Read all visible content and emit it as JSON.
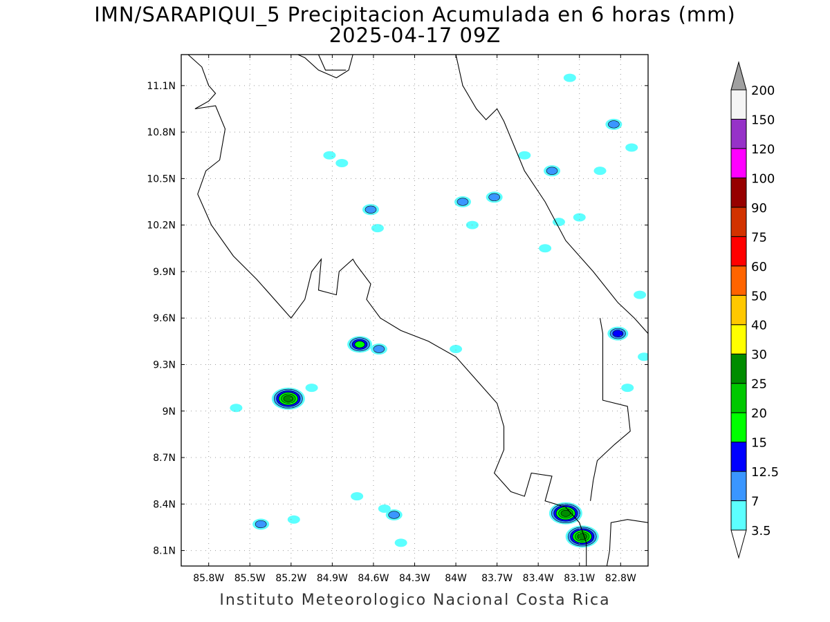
{
  "title": "IMN/SARAPIQUI_5 Precipitacion Acumulada en 6 horas (mm)",
  "subtitle": "2025-04-17 09Z",
  "credit": "Instituto Meteorologico Nacional Costa Rica",
  "map": {
    "lon_range": [
      -86.0,
      -82.6
    ],
    "lat_range": [
      8.0,
      11.3
    ],
    "lat_ticks": [
      {
        "value": 8.1,
        "label": "8.1N"
      },
      {
        "value": 8.4,
        "label": "8.4N"
      },
      {
        "value": 8.7,
        "label": "8.7N"
      },
      {
        "value": 9.0,
        "label": "9N"
      },
      {
        "value": 9.3,
        "label": "9.3N"
      },
      {
        "value": 9.6,
        "label": "9.6N"
      },
      {
        "value": 9.9,
        "label": "9.9N"
      },
      {
        "value": 10.2,
        "label": "10.2N"
      },
      {
        "value": 10.5,
        "label": "10.5N"
      },
      {
        "value": 10.8,
        "label": "10.8N"
      },
      {
        "value": 11.1,
        "label": "11.1N"
      }
    ],
    "lon_ticks": [
      {
        "value": -85.8,
        "label": "85.8W"
      },
      {
        "value": -85.5,
        "label": "85.5W"
      },
      {
        "value": -85.2,
        "label": "85.2W"
      },
      {
        "value": -84.9,
        "label": "84.9W"
      },
      {
        "value": -84.6,
        "label": "84.6W"
      },
      {
        "value": -84.3,
        "label": "84.3W"
      },
      {
        "value": -84.0,
        "label": "84W"
      },
      {
        "value": -83.7,
        "label": "83.7W"
      },
      {
        "value": -83.4,
        "label": "83.4W"
      },
      {
        "value": -83.1,
        "label": "83.1W"
      },
      {
        "value": -82.8,
        "label": "82.8W"
      }
    ],
    "grid": "dotted",
    "coastlines": [
      [
        [
          -85.95,
          11.3
        ],
        [
          -85.85,
          11.22
        ],
        [
          -85.8,
          11.1
        ],
        [
          -85.75,
          11.05
        ],
        [
          -85.8,
          11.0
        ],
        [
          -85.9,
          10.95
        ],
        [
          -85.75,
          10.97
        ],
        [
          -85.68,
          10.82
        ],
        [
          -85.72,
          10.62
        ],
        [
          -85.82,
          10.55
        ],
        [
          -85.88,
          10.4
        ],
        [
          -85.78,
          10.2
        ],
        [
          -85.62,
          10.0
        ],
        [
          -85.45,
          9.85
        ],
        [
          -85.2,
          9.6
        ],
        [
          -85.1,
          9.72
        ],
        [
          -85.05,
          9.9
        ],
        [
          -84.98,
          9.98
        ],
        [
          -85.0,
          9.78
        ],
        [
          -84.87,
          9.75
        ],
        [
          -84.85,
          9.9
        ],
        [
          -84.75,
          9.98
        ],
        [
          -84.73,
          9.95
        ],
        [
          -84.62,
          9.82
        ],
        [
          -84.65,
          9.72
        ],
        [
          -84.55,
          9.6
        ],
        [
          -84.4,
          9.52
        ],
        [
          -84.2,
          9.45
        ],
        [
          -84.0,
          9.35
        ],
        [
          -83.85,
          9.2
        ],
        [
          -83.7,
          9.05
        ],
        [
          -83.65,
          8.9
        ],
        [
          -83.65,
          8.75
        ],
        [
          -83.72,
          8.6
        ],
        [
          -83.6,
          8.48
        ],
        [
          -83.5,
          8.45
        ],
        [
          -83.45,
          8.6
        ],
        [
          -83.3,
          8.58
        ],
        [
          -83.35,
          8.42
        ],
        [
          -83.2,
          8.38
        ],
        [
          -83.1,
          8.28
        ],
        [
          -83.05,
          8.15
        ],
        [
          -83.05,
          8.0
        ]
      ],
      [
        [
          -82.9,
          8.0
        ],
        [
          -82.88,
          8.1
        ],
        [
          -82.87,
          8.28
        ],
        [
          -82.75,
          8.3
        ],
        [
          -82.6,
          8.28
        ]
      ],
      [
        [
          -84.75,
          11.3
        ],
        [
          -84.78,
          11.2
        ],
        [
          -84.87,
          11.15
        ],
        [
          -85.0,
          11.2
        ],
        [
          -85.1,
          11.28
        ],
        [
          -85.15,
          11.3
        ]
      ],
      [
        [
          -84.0,
          11.3
        ],
        [
          -83.95,
          11.1
        ],
        [
          -83.85,
          10.95
        ],
        [
          -83.78,
          10.88
        ],
        [
          -83.7,
          10.95
        ],
        [
          -83.65,
          10.87
        ],
        [
          -83.5,
          10.55
        ],
        [
          -83.35,
          10.35
        ],
        [
          -83.2,
          10.1
        ],
        [
          -83.0,
          9.9
        ],
        [
          -82.82,
          9.7
        ],
        [
          -82.7,
          9.6
        ],
        [
          -82.6,
          9.5
        ]
      ],
      [
        [
          -82.95,
          9.6
        ],
        [
          -82.93,
          9.5
        ],
        [
          -82.93,
          9.3
        ],
        [
          -82.93,
          9.07
        ],
        [
          -82.75,
          9.03
        ],
        [
          -82.73,
          8.87
        ],
        [
          -82.85,
          8.78
        ],
        [
          -82.97,
          8.68
        ],
        [
          -83.0,
          8.55
        ],
        [
          -83.02,
          8.42
        ]
      ],
      [
        [
          -85.0,
          11.3
        ],
        [
          -84.95,
          11.2
        ],
        [
          -84.8,
          11.2
        ]
      ]
    ],
    "rain_cells": [
      {
        "lon": -85.22,
        "lat": 9.08,
        "level": 25
      },
      {
        "lon": -84.7,
        "lat": 9.43,
        "level": 15
      },
      {
        "lon": -82.82,
        "lat": 9.5,
        "level": 12.5
      },
      {
        "lon": -83.08,
        "lat": 8.19,
        "level": 25
      },
      {
        "lon": -83.2,
        "lat": 8.34,
        "level": 25
      },
      {
        "lon": -84.56,
        "lat": 9.4,
        "level": 7
      },
      {
        "lon": -85.42,
        "lat": 8.27,
        "level": 7
      },
      {
        "lon": -84.62,
        "lat": 10.3,
        "level": 7
      },
      {
        "lon": -83.95,
        "lat": 10.35,
        "level": 7
      },
      {
        "lon": -83.72,
        "lat": 10.38,
        "level": 7
      },
      {
        "lon": -83.3,
        "lat": 10.55,
        "level": 7
      },
      {
        "lon": -82.85,
        "lat": 10.85,
        "level": 7
      },
      {
        "lon": -84.45,
        "lat": 8.33,
        "level": 7
      },
      {
        "lon": -84.52,
        "lat": 8.37,
        "level": 3.5
      },
      {
        "lon": -84.4,
        "lat": 8.15,
        "level": 3.5
      },
      {
        "lon": -84.72,
        "lat": 8.45,
        "level": 3.5
      },
      {
        "lon": -85.18,
        "lat": 8.3,
        "level": 3.5
      },
      {
        "lon": -85.05,
        "lat": 9.15,
        "level": 3.5
      },
      {
        "lon": -84.0,
        "lat": 9.4,
        "level": 3.5
      },
      {
        "lon": -84.57,
        "lat": 10.18,
        "level": 3.5
      },
      {
        "lon": -83.88,
        "lat": 10.2,
        "level": 3.5
      },
      {
        "lon": -83.5,
        "lat": 10.65,
        "level": 3.5
      },
      {
        "lon": -83.17,
        "lat": 11.15,
        "level": 3.5
      },
      {
        "lon": -83.35,
        "lat": 10.05,
        "level": 3.5
      },
      {
        "lon": -83.25,
        "lat": 10.22,
        "level": 3.5
      },
      {
        "lon": -82.95,
        "lat": 10.55,
        "level": 3.5
      },
      {
        "lon": -83.1,
        "lat": 10.25,
        "level": 3.5
      },
      {
        "lon": -82.72,
        "lat": 10.7,
        "level": 3.5
      },
      {
        "lon": -82.63,
        "lat": 9.35,
        "level": 3.5
      },
      {
        "lon": -82.75,
        "lat": 9.15,
        "level": 3.5
      },
      {
        "lon": -82.66,
        "lat": 9.75,
        "level": 3.5
      },
      {
        "lon": -84.83,
        "lat": 10.6,
        "level": 3.5
      },
      {
        "lon": -84.92,
        "lat": 10.65,
        "level": 3.5
      },
      {
        "lon": -85.6,
        "lat": 9.02,
        "level": 3.5
      }
    ]
  },
  "legend": {
    "levels": [
      "3.5",
      "7",
      "12.5",
      "15",
      "20",
      "25",
      "30",
      "40",
      "50",
      "60",
      "75",
      "90",
      "100",
      "120",
      "150",
      "200"
    ],
    "colors": [
      "#5cffff",
      "#3a96ff",
      "#0000ff",
      "#00ff00",
      "#00c800",
      "#008c00",
      "#ffff00",
      "#ffc800",
      "#ff6400",
      "#ff0000",
      "#d23200",
      "#960000",
      "#ff00ff",
      "#9632c8",
      "#f5f5f5",
      "#a0a0a0"
    ],
    "under_color": "#ffffff"
  }
}
